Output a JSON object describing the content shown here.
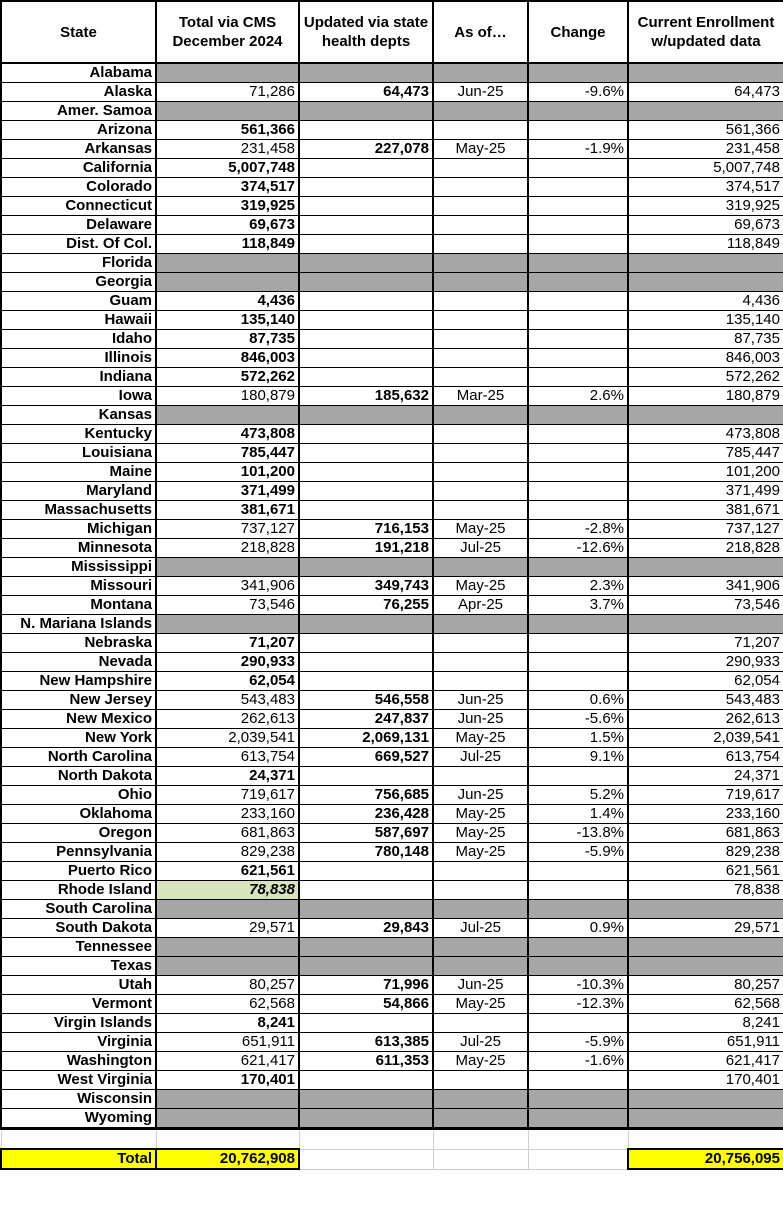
{
  "headers": {
    "state": "State",
    "cms": "Total via CMS December 2024",
    "updated": "Updated via state health depts",
    "asof": "As of…",
    "change": "Change",
    "current": "Current Enrollment w/updated data"
  },
  "colors": {
    "missing": "#a6a6a6",
    "highlight": "#d8e4bc",
    "total": "#ffff00"
  },
  "rows": [
    {
      "state": "Alabama",
      "missing": true
    },
    {
      "state": "Alaska",
      "cms": "71,286",
      "updated": "64,473",
      "asof": "Jun-25",
      "change": "-9.6%",
      "current": "64,473"
    },
    {
      "state": "Amer. Samoa",
      "missing": true
    },
    {
      "state": "Arizona",
      "cms": "561,366",
      "current": "561,366"
    },
    {
      "state": "Arkansas",
      "cms": "231,458",
      "updated": "227,078",
      "asof": "May-25",
      "change": "-1.9%",
      "current": "231,458"
    },
    {
      "state": "California",
      "cms": "5,007,748",
      "current": "5,007,748"
    },
    {
      "state": "Colorado",
      "cms": "374,517",
      "current": "374,517"
    },
    {
      "state": "Connecticut",
      "cms": "319,925",
      "current": "319,925"
    },
    {
      "state": "Delaware",
      "cms": "69,673",
      "current": "69,673"
    },
    {
      "state": "Dist. Of Col.",
      "cms": "118,849",
      "current": "118,849"
    },
    {
      "state": "Florida",
      "missing": true
    },
    {
      "state": "Georgia",
      "missing": true
    },
    {
      "state": "Guam",
      "cms": "4,436",
      "current": "4,436"
    },
    {
      "state": "Hawaii",
      "cms": "135,140",
      "current": "135,140"
    },
    {
      "state": "Idaho",
      "cms": "87,735",
      "current": "87,735"
    },
    {
      "state": "Illinois",
      "cms": "846,003",
      "current": "846,003"
    },
    {
      "state": "Indiana",
      "cms": "572,262",
      "current": "572,262"
    },
    {
      "state": "Iowa",
      "cms": "180,879",
      "updated": "185,632",
      "asof": "Mar-25",
      "change": "2.6%",
      "current": "180,879"
    },
    {
      "state": "Kansas",
      "missing": true
    },
    {
      "state": "Kentucky",
      "cms": "473,808",
      "current": "473,808"
    },
    {
      "state": "Louisiana",
      "cms": "785,447",
      "current": "785,447"
    },
    {
      "state": "Maine",
      "cms": "101,200",
      "current": "101,200"
    },
    {
      "state": "Maryland",
      "cms": "371,499",
      "current": "371,499"
    },
    {
      "state": "Massachusetts",
      "cms": "381,671",
      "current": "381,671"
    },
    {
      "state": "Michigan",
      "cms": "737,127",
      "updated": "716,153",
      "asof": "May-25",
      "change": "-2.8%",
      "current": "737,127"
    },
    {
      "state": "Minnesota",
      "cms": "218,828",
      "updated": "191,218",
      "asof": "Jul-25",
      "change": "-12.6%",
      "current": "218,828"
    },
    {
      "state": "Mississippi",
      "missing": true
    },
    {
      "state": "Missouri",
      "cms": "341,906",
      "updated": "349,743",
      "asof": "May-25",
      "change": "2.3%",
      "current": "341,906"
    },
    {
      "state": "Montana",
      "cms": "73,546",
      "updated": "76,255",
      "asof": "Apr-25",
      "change": "3.7%",
      "current": "73,546"
    },
    {
      "state": "N. Mariana Islands",
      "missing": true
    },
    {
      "state": "Nebraska",
      "cms": "71,207",
      "current": "71,207"
    },
    {
      "state": "Nevada",
      "cms": "290,933",
      "current": "290,933"
    },
    {
      "state": "New Hampshire",
      "cms": "62,054",
      "current": "62,054"
    },
    {
      "state": "New Jersey",
      "cms": "543,483",
      "updated": "546,558",
      "asof": "Jun-25",
      "change": "0.6%",
      "current": "543,483"
    },
    {
      "state": "New Mexico",
      "cms": "262,613",
      "updated": "247,837",
      "asof": "Jun-25",
      "change": "-5.6%",
      "current": "262,613"
    },
    {
      "state": "New York",
      "cms": "2,039,541",
      "updated": "2,069,131",
      "asof": "May-25",
      "change": "1.5%",
      "current": "2,039,541"
    },
    {
      "state": "North Carolina",
      "cms": "613,754",
      "updated": "669,527",
      "asof": "Jul-25",
      "change": "9.1%",
      "current": "613,754"
    },
    {
      "state": "North Dakota",
      "cms": "24,371",
      "current": "24,371"
    },
    {
      "state": "Ohio",
      "cms": "719,617",
      "updated": "756,685",
      "asof": "Jun-25",
      "change": "5.2%",
      "current": "719,617"
    },
    {
      "state": "Oklahoma",
      "cms": "233,160",
      "updated": "236,428",
      "asof": "May-25",
      "change": "1.4%",
      "current": "233,160"
    },
    {
      "state": "Oregon",
      "cms": "681,863",
      "updated": "587,697",
      "asof": "May-25",
      "change": "-13.8%",
      "current": "681,863"
    },
    {
      "state": "Pennsylvania",
      "cms": "829,238",
      "updated": "780,148",
      "asof": "May-25",
      "change": "-5.9%",
      "current": "829,238"
    },
    {
      "state": "Puerto Rico",
      "cms": "621,561",
      "current": "621,561"
    },
    {
      "state": "Rhode Island",
      "cms": "78,838",
      "highlight": true,
      "current": "78,838"
    },
    {
      "state": "South Carolina",
      "missing": true
    },
    {
      "state": "South Dakota",
      "cms": "29,571",
      "updated": "29,843",
      "asof": "Jul-25",
      "change": "0.9%",
      "current": "29,571"
    },
    {
      "state": "Tennessee",
      "missing": true
    },
    {
      "state": "Texas",
      "missing": true
    },
    {
      "state": "Utah",
      "cms": "80,257",
      "updated": "71,996",
      "asof": "Jun-25",
      "change": "-10.3%",
      "current": "80,257"
    },
    {
      "state": "Vermont",
      "cms": "62,568",
      "updated": "54,866",
      "asof": "May-25",
      "change": "-12.3%",
      "current": "62,568"
    },
    {
      "state": "Virgin Islands",
      "cms": "8,241",
      "current": "8,241"
    },
    {
      "state": "Virginia",
      "cms": "651,911",
      "updated": "613,385",
      "asof": "Jul-25",
      "change": "-5.9%",
      "current": "651,911"
    },
    {
      "state": "Washington",
      "cms": "621,417",
      "updated": "611,353",
      "asof": "May-25",
      "change": "-1.6%",
      "current": "621,417"
    },
    {
      "state": "West Virginia",
      "cms": "170,401",
      "current": "170,401"
    },
    {
      "state": "Wisconsin",
      "missing": true
    },
    {
      "state": "Wyoming",
      "missing": true
    }
  ],
  "total": {
    "label": "Total",
    "cms": "20,762,908",
    "current": "20,756,095"
  }
}
